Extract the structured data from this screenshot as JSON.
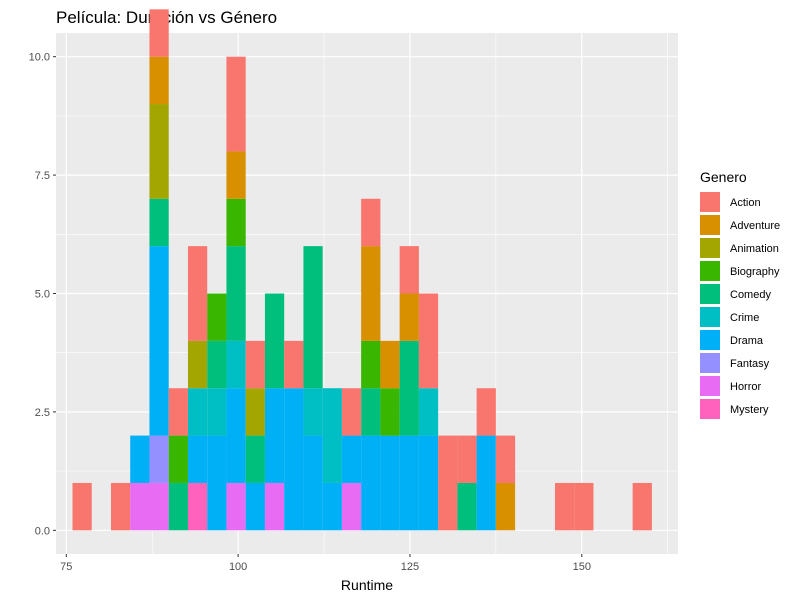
{
  "chart_data": {
    "type": "bar",
    "stacked": true,
    "title": "Película: Duración vs Género",
    "xlabel": "Runtime",
    "ylabel": "",
    "xlim": [
      73.5,
      164
    ],
    "ylim": [
      -0.5,
      10.5
    ],
    "xticks": [
      75,
      100,
      125,
      150
    ],
    "yticks": [
      0.0,
      2.5,
      5.0,
      7.5,
      10.0
    ],
    "ytick_labels": [
      "0.0",
      "2.5",
      "5.0",
      "7.5",
      "10.0"
    ],
    "bin_width": 2.8,
    "bin_starts": [
      75.9,
      81.5,
      84.3,
      87.1,
      89.9,
      92.7,
      95.5,
      98.3,
      101.1,
      103.9,
      106.7,
      109.5,
      112.3,
      115.1,
      117.9,
      120.7,
      123.5,
      126.3,
      129.1,
      131.9,
      134.7,
      137.5,
      146.1,
      148.9,
      157.4
    ],
    "legend": {
      "title": "Genero",
      "position": "right"
    },
    "series": [
      {
        "name": "Action",
        "color": "#F8766D",
        "values": [
          1,
          1,
          0,
          1,
          1,
          2,
          0,
          2,
          1,
          0,
          1,
          0,
          0,
          1,
          1,
          0,
          1,
          2,
          2,
          1,
          1,
          1,
          1,
          1,
          1
        ]
      },
      {
        "name": "Adventure",
        "color": "#D89000",
        "values": [
          0,
          0,
          0,
          1,
          0,
          0,
          0,
          1,
          0,
          0,
          0,
          0,
          0,
          0,
          2,
          1,
          1,
          0,
          0,
          0,
          0,
          1,
          0,
          0,
          0
        ]
      },
      {
        "name": "Animation",
        "color": "#A3A500",
        "values": [
          0,
          0,
          0,
          2,
          0,
          1,
          0,
          0,
          1,
          0,
          0,
          0,
          0,
          0,
          0,
          0,
          0,
          0,
          0,
          0,
          0,
          0,
          0,
          0,
          0
        ]
      },
      {
        "name": "Biography",
        "color": "#39B600",
        "values": [
          0,
          0,
          0,
          0,
          1,
          0,
          1,
          1,
          0,
          0,
          0,
          0,
          0,
          0,
          1,
          1,
          0,
          0,
          0,
          0,
          0,
          0,
          0,
          0,
          0
        ]
      },
      {
        "name": "Comedy",
        "color": "#00BF7D",
        "values": [
          0,
          0,
          0,
          1,
          1,
          0,
          1,
          2,
          1,
          2,
          0,
          3,
          0,
          0,
          1,
          0,
          2,
          0,
          0,
          1,
          0,
          0,
          0,
          0,
          0
        ]
      },
      {
        "name": "Crime",
        "color": "#00BFC4",
        "values": [
          0,
          0,
          0,
          0,
          0,
          1,
          1,
          1,
          0,
          0,
          0,
          1,
          2,
          0,
          0,
          0,
          0,
          1,
          0,
          0,
          0,
          0,
          0,
          0,
          0
        ]
      },
      {
        "name": "Drama",
        "color": "#00B0F6",
        "values": [
          0,
          0,
          1,
          4,
          0,
          1,
          2,
          2,
          1,
          2,
          3,
          2,
          1,
          1,
          2,
          2,
          2,
          2,
          0,
          0,
          2,
          0,
          0,
          0,
          0
        ]
      },
      {
        "name": "Fantasy",
        "color": "#9590FF",
        "values": [
          0,
          0,
          0,
          1,
          0,
          0,
          0,
          0,
          0,
          0,
          0,
          0,
          0,
          0,
          0,
          0,
          0,
          0,
          0,
          0,
          0,
          0,
          0,
          0,
          0
        ]
      },
      {
        "name": "Horror",
        "color": "#E76BF3",
        "values": [
          0,
          0,
          1,
          1,
          0,
          0,
          0,
          1,
          0,
          1,
          0,
          0,
          0,
          1,
          0,
          0,
          0,
          0,
          0,
          0,
          0,
          0,
          0,
          0,
          0
        ]
      },
      {
        "name": "Mystery",
        "color": "#FF62BC",
        "values": [
          0,
          0,
          0,
          0,
          0,
          1,
          0,
          0,
          0,
          0,
          0,
          0,
          0,
          0,
          0,
          0,
          0,
          0,
          0,
          0,
          0,
          0,
          0,
          0,
          0
        ]
      }
    ]
  }
}
